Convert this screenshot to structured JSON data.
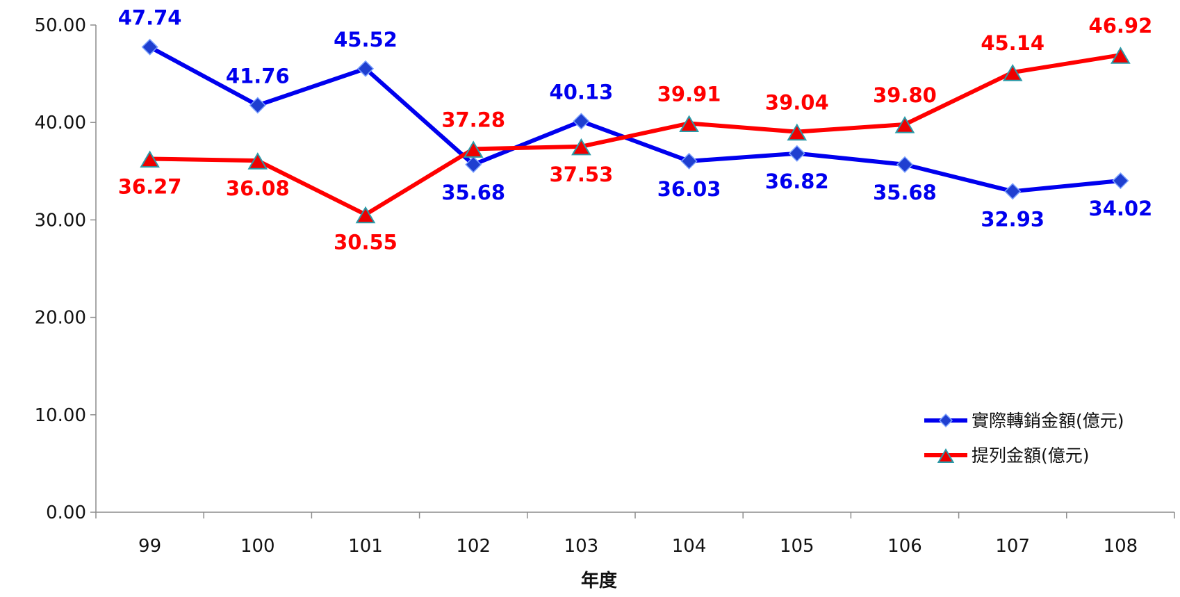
{
  "chart_data": {
    "type": "line",
    "categories": [
      "99",
      "100",
      "101",
      "102",
      "103",
      "104",
      "105",
      "106",
      "107",
      "108"
    ],
    "series": [
      {
        "name": "實際轉銷金額(億元)",
        "values": [
          47.74,
          41.76,
          45.52,
          35.68,
          40.13,
          36.03,
          36.82,
          35.68,
          32.93,
          34.02
        ],
        "labels": [
          "47.74",
          "41.76",
          "45.52",
          "35.68",
          "40.13",
          "36.03",
          "36.82",
          "35.68",
          "32.93",
          "34.02"
        ],
        "color": "#0000ee",
        "marker": "diamond",
        "marker_color": "#1f3fd0"
      },
      {
        "name": "提列金額(億元)",
        "values": [
          36.27,
          36.08,
          30.55,
          37.28,
          37.53,
          39.91,
          39.04,
          39.8,
          45.14,
          46.92
        ],
        "labels": [
          "36.27",
          "36.08",
          "30.55",
          "37.28",
          "37.53",
          "39.91",
          "39.04",
          "39.80",
          "45.14",
          "46.92"
        ],
        "color": "#ff0000",
        "marker": "triangle",
        "marker_color": "#ee0000"
      }
    ],
    "yticks": [
      "0.00",
      "10.00",
      "20.00",
      "30.00",
      "40.00",
      "50.00"
    ],
    "ylim": [
      0,
      50
    ],
    "xlabel": "年度",
    "ylabel": "",
    "title": "",
    "grid": false,
    "legend_position": "bottom-right"
  }
}
